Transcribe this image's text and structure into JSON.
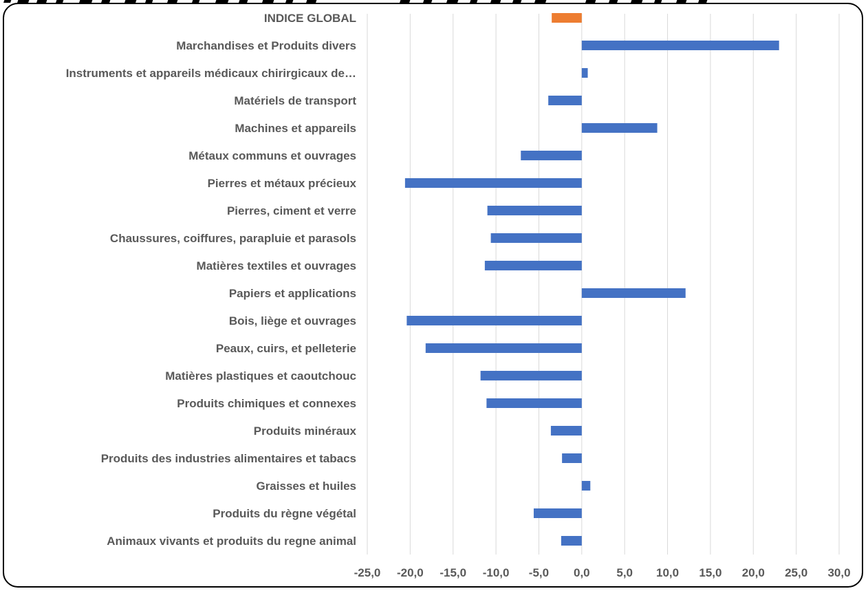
{
  "chart_data": {
    "type": "bar",
    "orientation": "horizontal",
    "title": "",
    "xlabel": "",
    "ylabel": "",
    "xlim": [
      -25,
      30
    ],
    "grid": true,
    "categories": [
      "INDICE GLOBAL",
      "Marchandises et Produits divers",
      "Instruments et appareils médicaux chirirgicaux de…",
      "Matériels de transport",
      "Machines et appareils",
      "Métaux communs et ouvrages",
      "Pierres et métaux précieux",
      "Pierres, ciment et verre",
      "Chaussures, coiffures, parapluie et parasols",
      "Matières textiles et ouvrages",
      "Papiers et applications",
      "Bois, liège et ouvrages",
      "Peaux, cuirs, et pelleterie",
      "Matières plastiques et caoutchouc",
      "Produits chimiques et connexes",
      "Produits minéraux",
      "Produits des industries alimentaires et tabacs",
      "Graisses et huiles",
      "Produits du règne végétal",
      "Animaux vivants et produits du regne animal"
    ],
    "values": [
      -3.5,
      23.0,
      0.7,
      -3.9,
      8.8,
      -7.1,
      -20.6,
      -11.0,
      -10.6,
      -11.3,
      12.1,
      -20.4,
      -18.2,
      -11.8,
      -11.1,
      -3.6,
      -2.3,
      1.0,
      -5.6,
      -2.4
    ],
    "highlight_category": "INDICE GLOBAL",
    "xticks": [
      "-25,0",
      "-20,0",
      "-15,0",
      "-10,0",
      "-5,0",
      "0,0",
      "5,0",
      "10,0",
      "15,0",
      "20,0",
      "25,0",
      "30,0"
    ],
    "colors": {
      "bar": "#4472c4",
      "highlight": "#ed7d31"
    }
  }
}
